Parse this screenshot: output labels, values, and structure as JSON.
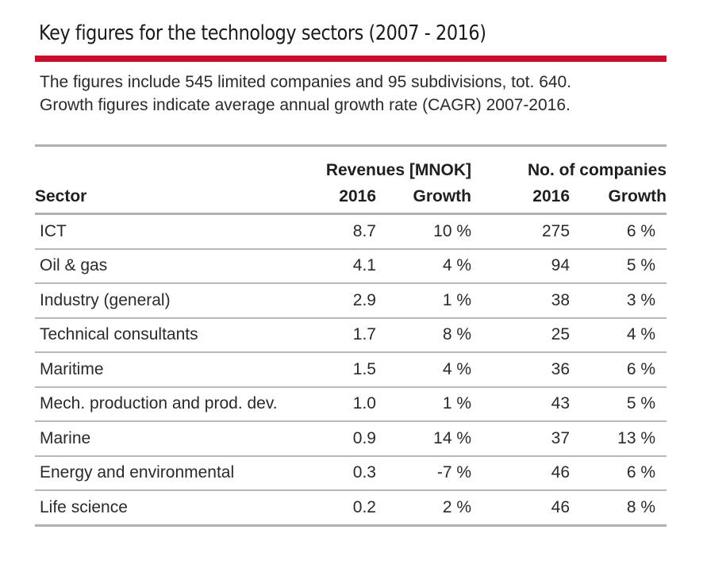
{
  "header": {
    "title": "Key figures for the technology sectors (2007 - 2016)",
    "subtitle_line1": "The figures include 545 limited companies and 95 subdivisions, tot. 640.",
    "subtitle_line2": "Growth figures indicate average annual growth rate (CAGR) 2007-2016."
  },
  "colors": {
    "accent": "#c8102e",
    "rule": "#b0b0b0"
  },
  "table": {
    "group_headers": {
      "revenues": "Revenues [MNOK]",
      "companies": "No. of companies"
    },
    "columns": {
      "sector": "Sector",
      "rev_year": "2016",
      "rev_growth": "Growth",
      "no_year": "2016",
      "no_growth": "Growth"
    },
    "rows": [
      {
        "sector": "ICT",
        "rev_2016": "8.7",
        "rev_growth": "10 %",
        "no_2016": "275",
        "no_growth": "6 %"
      },
      {
        "sector": "Oil & gas",
        "rev_2016": "4.1",
        "rev_growth": "4 %",
        "no_2016": "94",
        "no_growth": "5 %"
      },
      {
        "sector": "Industry (general)",
        "rev_2016": "2.9",
        "rev_growth": "1 %",
        "no_2016": "38",
        "no_growth": "3 %"
      },
      {
        "sector": "Technical consultants",
        "rev_2016": "1.7",
        "rev_growth": "8 %",
        "no_2016": "25",
        "no_growth": "4 %"
      },
      {
        "sector": "Maritime",
        "rev_2016": "1.5",
        "rev_growth": "4 %",
        "no_2016": "36",
        "no_growth": "6 %"
      },
      {
        "sector": "Mech. production and prod. dev.",
        "rev_2016": "1.0",
        "rev_growth": "1 %",
        "no_2016": "43",
        "no_growth": "5 %"
      },
      {
        "sector": "Marine",
        "rev_2016": "0.9",
        "rev_growth": "14 %",
        "no_2016": "37",
        "no_growth": "13 %"
      },
      {
        "sector": "Energy and environmental",
        "rev_2016": "0.3",
        "rev_growth": "-7 %",
        "no_2016": "46",
        "no_growth": "6 %"
      },
      {
        "sector": "Life science",
        "rev_2016": "0.2",
        "rev_growth": "2 %",
        "no_2016": "46",
        "no_growth": "8 %"
      }
    ]
  }
}
